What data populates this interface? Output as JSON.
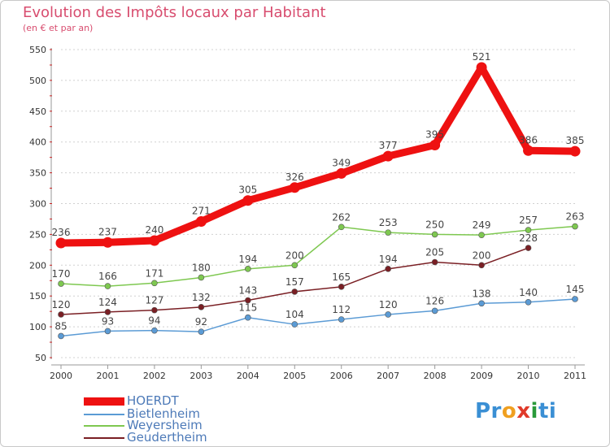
{
  "title": "Evolution des Impôts locaux par Habitant",
  "subtitle": "(en € et par an)",
  "logo": {
    "parts": [
      "Pr",
      "o",
      "x",
      "i",
      "ti"
    ],
    "colors": [
      "#3a8fd4",
      "#f0a020",
      "#e03a2a",
      "#2a9a3a",
      "#3a8fd4"
    ]
  },
  "chart_data": {
    "type": "line",
    "title": "Evolution des Impôts locaux par Habitant",
    "subtitle": "(en € et par an)",
    "xlabel": "",
    "ylabel": "",
    "ylim": [
      50,
      550
    ],
    "y_ticks": [
      50,
      100,
      150,
      200,
      250,
      300,
      350,
      400,
      450,
      500,
      550
    ],
    "x": [
      "2000",
      "2001",
      "2002",
      "2003",
      "2004",
      "2005",
      "2006",
      "2007",
      "2008",
      "2009",
      "2010",
      "2011"
    ],
    "series": [
      {
        "name": "HOERDT",
        "color": "#ee1111",
        "values": [
          236,
          237,
          240,
          271,
          305,
          326,
          349,
          377,
          395,
          521,
          386,
          385
        ]
      },
      {
        "name": "Bietlenheim",
        "color": "#5b9bd5",
        "values": [
          85,
          93,
          94,
          92,
          115,
          104,
          112,
          120,
          126,
          138,
          140,
          145
        ]
      },
      {
        "name": "Weyersheim",
        "color": "#7ec850",
        "values": [
          170,
          166,
          171,
          180,
          194,
          200,
          262,
          253,
          250,
          249,
          257,
          263
        ]
      },
      {
        "name": "Geudertheim",
        "color": "#7a1f24",
        "values": [
          120,
          124,
          127,
          132,
          143,
          157,
          165,
          194,
          205,
          200,
          228,
          null
        ]
      }
    ]
  }
}
